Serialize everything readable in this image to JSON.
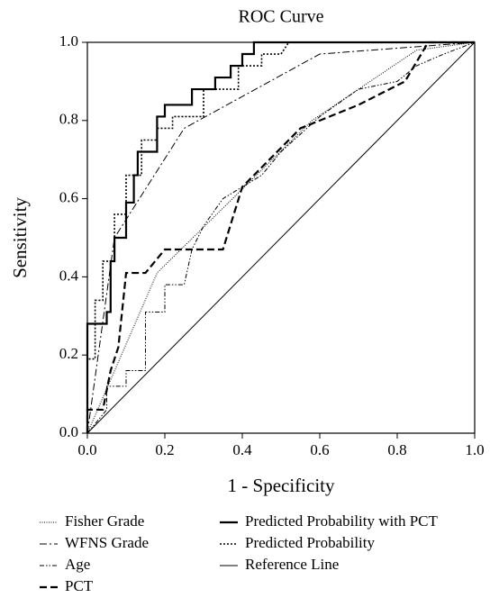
{
  "chart_data": {
    "type": "line",
    "title": "ROC Curve",
    "x_label": "1 - Specificity",
    "y_label": "Sensitivity",
    "xlim": [
      0,
      1
    ],
    "ylim": [
      0,
      1
    ],
    "xticks": [
      {
        "value": 0,
        "label": "0.0"
      },
      0.2,
      0.4,
      0.6,
      0.8,
      {
        "value": 1,
        "label": "1.0"
      }
    ],
    "yticks": [
      {
        "value": 0,
        "label": "0.0"
      },
      0.2,
      0.4,
      0.6,
      0.8,
      {
        "value": 1,
        "label": "1.0"
      }
    ],
    "grid": false,
    "legend": "bottom",
    "series": [
      {
        "name": "Fisher Grade",
        "color": "#000000",
        "width": 1,
        "dash": "1 1.5",
        "x": [
          0,
          0.18,
          0.58,
          0.85,
          1
        ],
        "values": [
          0,
          0.41,
          0.8,
          0.98,
          1
        ]
      },
      {
        "name": "WFNS Grade",
        "color": "#000000",
        "width": 1,
        "dash": "8 3 2 3",
        "x": [
          0,
          0.07,
          0.25,
          0.6,
          1
        ],
        "values": [
          0,
          0.5,
          0.78,
          0.97,
          1
        ]
      },
      {
        "name": "Age",
        "color": "#000000",
        "width": 1,
        "dash": "5 2 1.5 2 1.5 2",
        "x": [
          0,
          0.05,
          0.05,
          0.1,
          0.1,
          0.15,
          0.15,
          0.2,
          0.2,
          0.25,
          0.27,
          0.3,
          0.35,
          0.45,
          0.5,
          0.6,
          0.7,
          0.8,
          0.85,
          0.92,
          1
        ],
        "values": [
          0,
          0.06,
          0.12,
          0.12,
          0.16,
          0.16,
          0.31,
          0.31,
          0.38,
          0.38,
          0.47,
          0.53,
          0.6,
          0.66,
          0.72,
          0.81,
          0.88,
          0.9,
          0.94,
          0.97,
          1
        ]
      },
      {
        "name": "PCT",
        "color": "#000000",
        "width": 2.2,
        "dash": "8 4",
        "x": [
          0,
          0,
          0.04,
          0.06,
          0.08,
          0.1,
          0.15,
          0.2,
          0.35,
          0.4,
          0.55,
          0.7,
          0.82,
          0.88,
          1
        ],
        "values": [
          0,
          0.06,
          0.06,
          0.16,
          0.22,
          0.41,
          0.41,
          0.47,
          0.47,
          0.63,
          0.78,
          0.84,
          0.9,
          1,
          1
        ]
      },
      {
        "name": "Predicted Probability with PCT",
        "color": "#000000",
        "width": 2.2,
        "dash": "none",
        "x": [
          0,
          0,
          0.05,
          0.05,
          0.06,
          0.06,
          0.07,
          0.07,
          0.1,
          0.1,
          0.12,
          0.12,
          0.13,
          0.13,
          0.18,
          0.18,
          0.2,
          0.2,
          0.27,
          0.27,
          0.33,
          0.33,
          0.37,
          0.37,
          0.4,
          0.4,
          0.43,
          0.43,
          1
        ],
        "values": [
          0,
          0.28,
          0.28,
          0.31,
          0.31,
          0.44,
          0.44,
          0.5,
          0.5,
          0.59,
          0.59,
          0.66,
          0.66,
          0.72,
          0.72,
          0.81,
          0.81,
          0.84,
          0.84,
          0.88,
          0.88,
          0.91,
          0.91,
          0.94,
          0.94,
          0.97,
          0.97,
          1,
          1
        ]
      },
      {
        "name": "Predicted Probability",
        "color": "#000000",
        "width": 1.6,
        "dash": "2 2",
        "x": [
          0,
          0,
          0.02,
          0.02,
          0.04,
          0.04,
          0.07,
          0.07,
          0.1,
          0.1,
          0.14,
          0.14,
          0.18,
          0.18,
          0.22,
          0.22,
          0.3,
          0.3,
          0.39,
          0.39,
          0.45,
          0.45,
          0.5,
          0.52,
          1
        ],
        "values": [
          0,
          0.19,
          0.19,
          0.34,
          0.34,
          0.44,
          0.44,
          0.56,
          0.56,
          0.66,
          0.66,
          0.75,
          0.75,
          0.78,
          0.78,
          0.81,
          0.81,
          0.88,
          0.88,
          0.94,
          0.94,
          0.97,
          0.97,
          1,
          1
        ]
      },
      {
        "name": "Reference Line",
        "color": "#000000",
        "width": 1,
        "dash": "none",
        "x": [
          0,
          1
        ],
        "values": [
          0,
          1
        ]
      }
    ]
  }
}
